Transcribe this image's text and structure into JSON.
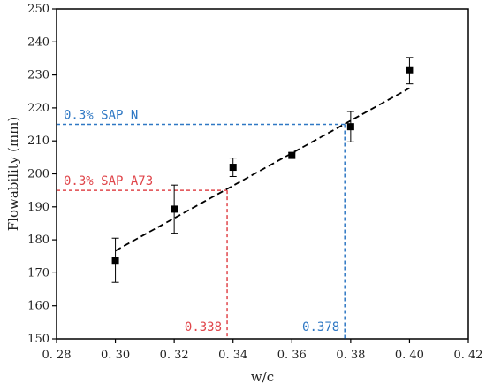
{
  "chart_data": {
    "type": "scatter",
    "title": "",
    "xlabel": "w/c",
    "ylabel": "Flowability (mm)",
    "xlim": [
      0.28,
      0.42
    ],
    "ylim": [
      150,
      250
    ],
    "x_ticks": [
      0.28,
      0.3,
      0.32,
      0.34,
      0.36,
      0.38,
      0.4,
      0.42
    ],
    "x_tick_labels": [
      "0. 28",
      "0. 30",
      "0. 32",
      "0. 34",
      "0. 36",
      "0. 38",
      "0. 40",
      "0. 42"
    ],
    "y_ticks": [
      150,
      160,
      170,
      180,
      190,
      200,
      210,
      220,
      230,
      240,
      250
    ],
    "y_tick_labels": [
      "150",
      "160",
      "170",
      "180",
      "190",
      "200",
      "210",
      "220",
      "230",
      "240",
      "250"
    ],
    "grid": false,
    "series": [
      {
        "marker": "square",
        "color": "#000000",
        "x": [
          0.3,
          0.32,
          0.34,
          0.36,
          0.38,
          0.4
        ],
        "y": [
          173.8,
          189.3,
          202.0,
          205.6,
          214.3,
          231.3
        ],
        "error": [
          6.7,
          7.3,
          2.8,
          0.8,
          4.6,
          4.0
        ]
      }
    ],
    "fit_line": {
      "style": "dashed",
      "color": "#000000",
      "x": [
        0.3,
        0.4
      ],
      "y": [
        176.7,
        226.0
      ]
    },
    "reference_lines": [
      {
        "label": "0.3% SAP N",
        "y": 215,
        "x": 0.378,
        "x_label": "0.378",
        "color": "#2f78c4"
      },
      {
        "label": "0.3% SAP A73",
        "y": 195,
        "x": 0.338,
        "x_label": "0.338",
        "color": "#e0474c"
      }
    ]
  }
}
